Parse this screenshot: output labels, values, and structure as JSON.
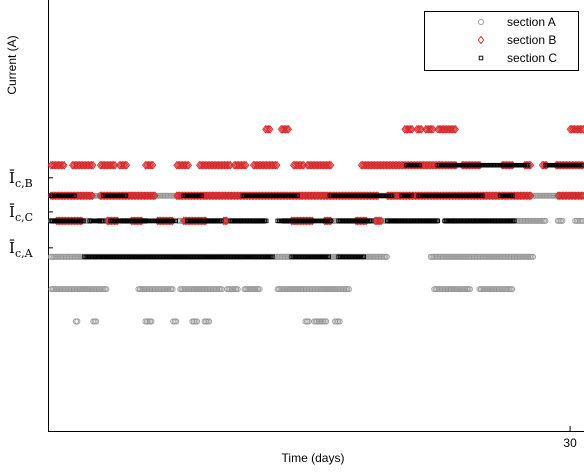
{
  "chart_data": {
    "type": "scatter",
    "xlabel": "Time (days)",
    "ylabel": "Current (A)",
    "x_ticks": [
      30
    ],
    "xlim": [
      0,
      30.8
    ],
    "ylim": [
      0,
      12
    ],
    "y_level_labels": [
      {
        "text": "Ī",
        "sub": "c,B",
        "y": 7.05
      },
      {
        "text": "Ī",
        "sub": "c,C",
        "y": 6.1
      },
      {
        "text": "Ī",
        "sub": "c,A",
        "y": 5.1
      }
    ],
    "legend": {
      "position": "top-right",
      "entries": [
        "section A",
        "section B",
        "section C"
      ]
    },
    "colors": {
      "section A": "#999999",
      "section B": "#d62728",
      "section C": "#000000"
    },
    "series": [
      {
        "name": "section A",
        "marker": "circle",
        "levels": [
          {
            "y": 6.55,
            "segments": [
              [
                0,
                30.8
              ]
            ]
          },
          {
            "y": 5.85,
            "segments": [
              [
                0,
                2.5
              ],
              [
                2.9,
                3.6
              ],
              [
                4.2,
                5.7
              ],
              [
                7.5,
                12.5
              ],
              [
                13.5,
                15.2
              ],
              [
                16.0,
                22.4
              ],
              [
                22.8,
                28.6
              ],
              [
                29.3,
                29.6
              ],
              [
                30.3,
                30.8
              ]
            ]
          },
          {
            "y": 4.85,
            "segments": [
              [
                0,
                19.5
              ],
              [
                22.0,
                27.9
              ]
            ]
          },
          {
            "y": 3.95,
            "segments": [
              [
                0.2,
                3.4
              ],
              [
                5.2,
                7.2
              ],
              [
                7.6,
                10.0
              ],
              [
                10.3,
                10.9
              ],
              [
                11.3,
                12.2
              ],
              [
                13.2,
                17.3
              ],
              [
                22.2,
                24.3
              ],
              [
                24.8,
                26.7
              ]
            ]
          },
          {
            "y": 3.05,
            "segments": [
              [
                1.6,
                1.7
              ],
              [
                2.6,
                2.8
              ],
              [
                5.6,
                6.0
              ],
              [
                7.2,
                7.4
              ],
              [
                8.3,
                8.6
              ],
              [
                9.0,
                9.3
              ],
              [
                14.8,
                15.0
              ],
              [
                15.3,
                16.0
              ],
              [
                16.5,
                16.8
              ]
            ]
          }
        ]
      },
      {
        "name": "section B",
        "marker": "diamond",
        "levels": [
          {
            "y": 8.4,
            "segments": [
              [
                12.5,
                12.8
              ],
              [
                13.4,
                13.9
              ],
              [
                20.5,
                21.0
              ],
              [
                21.2,
                21.5
              ],
              [
                21.7,
                22.2
              ],
              [
                22.4,
                23.5
              ],
              [
                30.0,
                30.8
              ]
            ]
          },
          {
            "y": 7.4,
            "segments": [
              [
                0,
                1.0
              ],
              [
                1.4,
                2.6
              ],
              [
                3.0,
                3.9
              ],
              [
                4.1,
                4.6
              ],
              [
                5.6,
                6.1
              ],
              [
                7.4,
                8.1
              ],
              [
                8.7,
                10.5
              ],
              [
                10.7,
                11.4
              ],
              [
                11.8,
                13.2
              ],
              [
                14.1,
                14.7
              ],
              [
                14.9,
                16.3
              ],
              [
                18.0,
                23.5
              ],
              [
                23.8,
                24.9
              ],
              [
                26.1,
                26.7
              ],
              [
                27.4,
                27.8
              ],
              [
                28.4,
                28.7
              ],
              [
                29.2,
                30.8
              ]
            ]
          },
          {
            "y": 6.55,
            "segments": [
              [
                0,
                2.6
              ],
              [
                3.0,
                6.2
              ],
              [
                7.4,
                19.0
              ],
              [
                19.5,
                27.8
              ],
              [
                29.3,
                30.8
              ]
            ]
          },
          {
            "y": 5.85,
            "segments": [
              [
                0.5,
                2.0
              ],
              [
                3.4,
                4.0
              ],
              [
                4.8,
                5.4
              ],
              [
                6.3,
                7.2
              ],
              [
                7.8,
                9.1
              ],
              [
                10.1,
                10.3
              ],
              [
                14.0,
                15.2
              ],
              [
                15.9,
                16.3
              ],
              [
                17.7,
                18.3
              ],
              [
                18.8,
                19.2
              ]
            ]
          }
        ]
      },
      {
        "name": "section C",
        "marker": "square",
        "levels": [
          {
            "y": 7.4,
            "segments": [
              [
                20.6,
                21.4
              ],
              [
                22.4,
                27.6
              ],
              [
                28.6,
                30.8
              ]
            ]
          },
          {
            "y": 6.55,
            "segments": [
              [
                0.0,
                1.6
              ],
              [
                3.2,
                4.5
              ],
              [
                7.8,
                8.9
              ],
              [
                11.2,
                14.4
              ],
              [
                16.2,
                19.8
              ],
              [
                20.3,
                20.9
              ],
              [
                21.3,
                25.0
              ],
              [
                26.0,
                26.7
              ]
            ]
          },
          {
            "y": 5.85,
            "segments": [
              [
                0,
                2.1
              ],
              [
                2.4,
                3.2
              ],
              [
                3.6,
                7.4
              ],
              [
                8.0,
                10.0
              ],
              [
                10.5,
                12.6
              ],
              [
                13.2,
                16.3
              ],
              [
                16.7,
                18.6
              ],
              [
                19.5,
                22.4
              ],
              [
                22.8,
                26.8
              ]
            ]
          },
          {
            "y": 4.85,
            "segments": [
              [
                2.1,
                12.9
              ],
              [
                14.0,
                16.2
              ],
              [
                16.7,
                18.2
              ]
            ]
          }
        ]
      }
    ]
  }
}
